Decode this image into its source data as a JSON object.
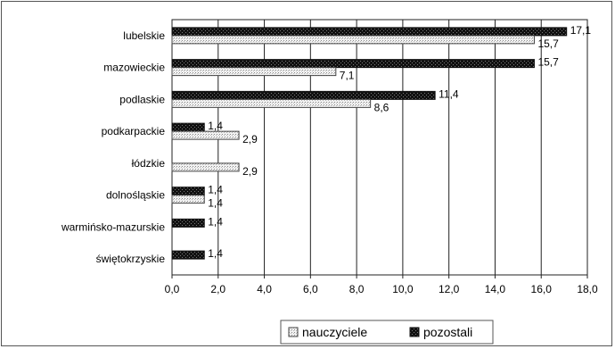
{
  "chart_data": {
    "type": "bar",
    "orientation": "horizontal",
    "categories": [
      "lubelskie",
      "mazowieckie",
      "podlaskie",
      "podkarpackie",
      "łódzkie",
      "dolnośląskie",
      "warmińsko-mazurskie",
      "świętokrzyskie"
    ],
    "series": [
      {
        "name": "nauczyciele",
        "values": [
          15.7,
          7.1,
          8.6,
          2.9,
          2.9,
          1.4,
          null,
          null
        ],
        "labels": [
          "15,7",
          "7,1",
          "8,6",
          "2,9",
          "2,9",
          "1,4",
          "",
          ""
        ],
        "color": "#e8e8e8",
        "pattern": "dotted"
      },
      {
        "name": "pozostali",
        "values": [
          17.1,
          15.7,
          11.4,
          1.4,
          null,
          1.4,
          1.4,
          1.4
        ],
        "labels": [
          "17,1",
          "15,7",
          "11,4",
          "1,4",
          "",
          "1,4",
          "1,4",
          "1,4"
        ],
        "color": "#111111",
        "pattern": "checkered"
      }
    ],
    "xlim": [
      0,
      18
    ],
    "xticks": [
      0,
      2,
      4,
      6,
      8,
      10,
      12,
      14,
      16,
      18
    ],
    "xtick_labels": [
      "0,0",
      "2,0",
      "4,0",
      "6,0",
      "8,0",
      "10,0",
      "12,0",
      "14,0",
      "16,0",
      "18,0"
    ],
    "grid": "vertical",
    "legend_position": "bottom"
  }
}
